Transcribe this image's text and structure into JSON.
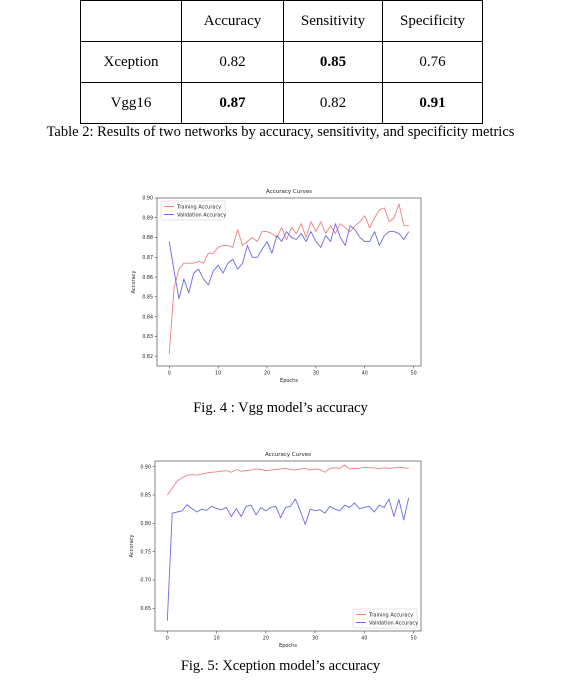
{
  "table": {
    "caption": "Table 2: Results of two networks by accuracy, sensitivity, and specificity metrics",
    "header": [
      "",
      "Accuracy",
      "Sensitivity",
      "Specificity"
    ],
    "rows": [
      {
        "name": "Xception",
        "cells": [
          "0.82",
          "0.85",
          "0.76"
        ],
        "bold": [
          false,
          true,
          false
        ]
      },
      {
        "name": "Vgg16",
        "cells": [
          "0.87",
          "0.82",
          "0.91"
        ],
        "bold": [
          true,
          false,
          true
        ]
      }
    ]
  },
  "figures": [
    {
      "caption": "Fig. 4 : Vgg model’s accuracy"
    },
    {
      "caption": "Fig. 5: Xception model’s accuracy"
    }
  ],
  "colors": {
    "training": "#f08080",
    "validation": "#6a6ae6"
  },
  "chart_data": [
    {
      "type": "line",
      "title": "Accuracy Curves",
      "xlabel": "Epochs",
      "ylabel": "Accuracy",
      "xlim": [
        -2.5,
        51.5
      ],
      "ylim": [
        0.815,
        0.9
      ],
      "xticks": [
        0,
        10,
        20,
        30,
        40,
        50
      ],
      "yticks": [
        0.82,
        0.83,
        0.84,
        0.85,
        0.86,
        0.87,
        0.88,
        0.89,
        0.9
      ],
      "ytick_labels": [
        "0.82",
        "0.83",
        "0.84",
        "0.85",
        "0.86",
        "0.87",
        "0.88",
        "0.89",
        "0.90"
      ],
      "legend": "upper-left",
      "grid": false,
      "x": [
        0,
        1,
        2,
        3,
        4,
        5,
        6,
        7,
        8,
        9,
        10,
        11,
        12,
        13,
        14,
        15,
        16,
        17,
        18,
        19,
        20,
        21,
        22,
        23,
        24,
        25,
        26,
        27,
        28,
        29,
        30,
        31,
        32,
        33,
        34,
        35,
        36,
        37,
        38,
        39,
        40,
        41,
        42,
        43,
        44,
        45,
        46,
        47,
        48,
        49
      ],
      "series": [
        {
          "name": "Training Accuracy",
          "values": [
            0.821,
            0.855,
            0.864,
            0.867,
            0.867,
            0.867,
            0.868,
            0.867,
            0.872,
            0.872,
            0.875,
            0.876,
            0.876,
            0.875,
            0.884,
            0.876,
            0.878,
            0.88,
            0.878,
            0.883,
            0.883,
            0.882,
            0.88,
            0.885,
            0.879,
            0.885,
            0.882,
            0.887,
            0.88,
            0.888,
            0.883,
            0.888,
            0.882,
            0.886,
            0.882,
            0.887,
            0.885,
            0.883,
            0.886,
            0.888,
            0.891,
            0.885,
            0.89,
            0.894,
            0.895,
            0.888,
            0.89,
            0.897,
            0.886,
            0.886
          ]
        },
        {
          "name": "Validation Accuracy",
          "values": [
            0.878,
            0.863,
            0.849,
            0.859,
            0.852,
            0.862,
            0.864,
            0.859,
            0.856,
            0.863,
            0.866,
            0.862,
            0.867,
            0.869,
            0.864,
            0.867,
            0.876,
            0.87,
            0.87,
            0.874,
            0.878,
            0.872,
            0.881,
            0.878,
            0.883,
            0.88,
            0.879,
            0.882,
            0.878,
            0.883,
            0.878,
            0.875,
            0.881,
            0.878,
            0.887,
            0.88,
            0.876,
            0.886,
            0.884,
            0.88,
            0.878,
            0.878,
            0.883,
            0.876,
            0.881,
            0.883,
            0.883,
            0.882,
            0.879,
            0.883
          ]
        }
      ]
    },
    {
      "type": "line",
      "title": "Accuracy Curves",
      "xlabel": "Epochs",
      "ylabel": "Accuracy",
      "xlim": [
        -2.5,
        51.5
      ],
      "ylim": [
        0.61,
        0.91
      ],
      "xticks": [
        0,
        10,
        20,
        30,
        40,
        50
      ],
      "yticks": [
        0.65,
        0.7,
        0.75,
        0.8,
        0.85,
        0.9
      ],
      "ytick_labels": [
        "0.65",
        "0.70",
        "0.75",
        "0.80",
        "0.85",
        "0.90"
      ],
      "legend": "lower-right",
      "grid": false,
      "x": [
        0,
        1,
        2,
        3,
        4,
        5,
        6,
        7,
        8,
        9,
        10,
        11,
        12,
        13,
        14,
        15,
        16,
        17,
        18,
        19,
        20,
        21,
        22,
        23,
        24,
        25,
        26,
        27,
        28,
        29,
        30,
        31,
        32,
        33,
        34,
        35,
        36,
        37,
        38,
        39,
        40,
        41,
        42,
        43,
        44,
        45,
        46,
        47,
        48,
        49
      ],
      "series": [
        {
          "name": "Training Accuracy",
          "values": [
            0.85,
            0.862,
            0.875,
            0.88,
            0.885,
            0.886,
            0.885,
            0.887,
            0.889,
            0.89,
            0.891,
            0.892,
            0.893,
            0.89,
            0.895,
            0.892,
            0.893,
            0.894,
            0.896,
            0.895,
            0.893,
            0.894,
            0.895,
            0.896,
            0.897,
            0.895,
            0.894,
            0.896,
            0.897,
            0.894,
            0.896,
            0.895,
            0.89,
            0.897,
            0.898,
            0.897,
            0.903,
            0.896,
            0.897,
            0.897,
            0.899,
            0.898,
            0.898,
            0.896,
            0.898,
            0.897,
            0.898,
            0.899,
            0.898,
            0.897
          ]
        },
        {
          "name": "Validation Accuracy",
          "values": [
            0.628,
            0.818,
            0.82,
            0.822,
            0.833,
            0.826,
            0.82,
            0.825,
            0.823,
            0.83,
            0.826,
            0.824,
            0.828,
            0.812,
            0.826,
            0.812,
            0.83,
            0.832,
            0.815,
            0.828,
            0.822,
            0.828,
            0.83,
            0.81,
            0.828,
            0.83,
            0.843,
            0.822,
            0.798,
            0.825,
            0.822,
            0.824,
            0.818,
            0.83,
            0.825,
            0.822,
            0.832,
            0.828,
            0.836,
            0.826,
            0.828,
            0.83,
            0.82,
            0.832,
            0.828,
            0.843,
            0.812,
            0.842,
            0.806,
            0.845
          ]
        }
      ]
    }
  ]
}
